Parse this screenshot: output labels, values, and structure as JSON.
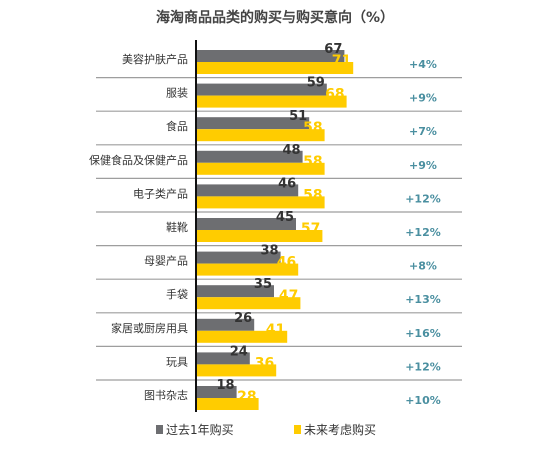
{
  "chart_data": {
    "type": "bar",
    "orientation": "horizontal",
    "title": "海淘商品品类的购买与购买意向（%）",
    "categories": [
      "美容护肤产品",
      "服装",
      "食品",
      "保健食品及保健产品",
      "电子类产品",
      "鞋靴",
      "母婴产品",
      "手袋",
      "家居或厨房用具",
      "玩具",
      "图书杂志"
    ],
    "series": [
      {
        "name": "过去1年购买",
        "values": [
          67,
          59,
          51,
          48,
          46,
          45,
          38,
          35,
          26,
          24,
          18
        ],
        "color": "#6d6e71"
      },
      {
        "name": "未来考虑购买",
        "values": [
          71,
          68,
          58,
          58,
          58,
          57,
          46,
          47,
          41,
          36,
          28
        ],
        "color": "#ffcc00"
      }
    ],
    "changes": [
      "+4%",
      "+9%",
      "+7%",
      "+9%",
      "+12%",
      "+12%",
      "+8%",
      "+13%",
      "+16%",
      "+12%",
      "+10%"
    ],
    "change_color": "#4a8fa0",
    "separator_color": "#9e9e9e",
    "axis_color": "#111111",
    "legend_position": "bottom",
    "ylim": [
      0,
      80
    ],
    "grid": false
  }
}
